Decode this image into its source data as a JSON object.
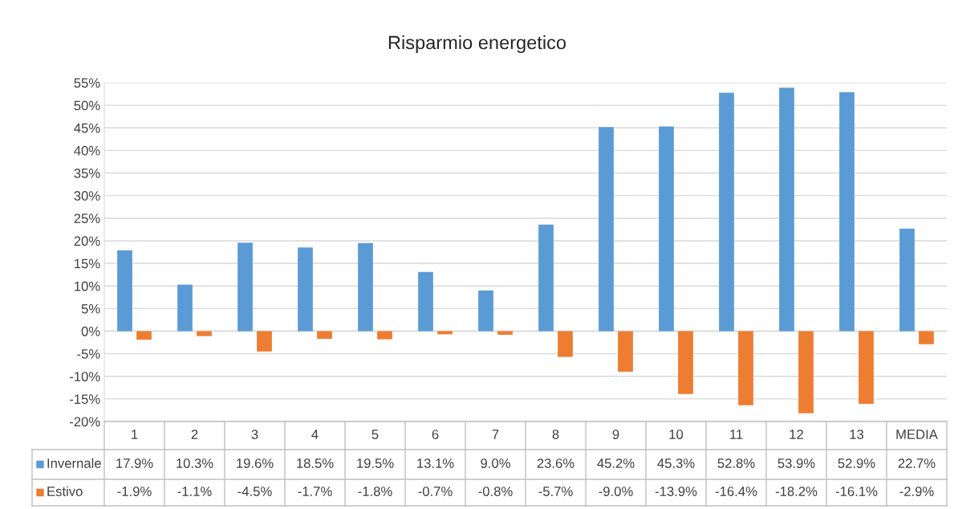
{
  "chart_data": {
    "type": "bar",
    "title": "Risparmio energetico",
    "categories": [
      "1",
      "2",
      "3",
      "4",
      "5",
      "6",
      "7",
      "8",
      "9",
      "10",
      "11",
      "12",
      "13",
      "MEDIA"
    ],
    "series": [
      {
        "name": "Invernale",
        "color": "#5b9bd5",
        "values": [
          17.9,
          10.3,
          19.6,
          18.5,
          19.5,
          13.1,
          9.0,
          23.6,
          45.2,
          45.3,
          52.8,
          53.9,
          52.9,
          22.7
        ],
        "value_labels": [
          "17.9%",
          "10.3%",
          "19.6%",
          "18.5%",
          "19.5%",
          "13.1%",
          "9.0%",
          "23.6%",
          "45.2%",
          "45.3%",
          "52.8%",
          "53.9%",
          "52.9%",
          "22.7%"
        ]
      },
      {
        "name": "Estivo",
        "color": "#ed7d31",
        "values": [
          -1.9,
          -1.1,
          -4.5,
          -1.7,
          -1.8,
          -0.7,
          -0.8,
          -5.7,
          -9.0,
          -13.9,
          -16.4,
          -18.2,
          -16.1,
          -2.9
        ],
        "value_labels": [
          "-1.9%",
          "-1.1%",
          "-4.5%",
          "-1.7%",
          "-1.8%",
          "-0.7%",
          "-0.8%",
          "-5.7%",
          "-9.0%",
          "-13.9%",
          "-16.4%",
          "-18.2%",
          "-16.1%",
          "-2.9%"
        ]
      }
    ],
    "ylim": [
      -20,
      55
    ],
    "yticks": [
      {
        "value": -20,
        "label": "-20%"
      },
      {
        "value": -15,
        "label": "-15%"
      },
      {
        "value": -10,
        "label": "-10%"
      },
      {
        "value": -5,
        "label": "-5%"
      },
      {
        "value": 0,
        "label": "0%"
      },
      {
        "value": 5,
        "label": "5%"
      },
      {
        "value": 10,
        "label": "10%"
      },
      {
        "value": 15,
        "label": "15%"
      },
      {
        "value": 20,
        "label": "20%"
      },
      {
        "value": 25,
        "label": "25%"
      },
      {
        "value": 30,
        "label": "30%"
      },
      {
        "value": 35,
        "label": "35%"
      },
      {
        "value": 40,
        "label": "40%"
      },
      {
        "value": 45,
        "label": "45%"
      },
      {
        "value": 50,
        "label": "50%"
      },
      {
        "value": 55,
        "label": "55%"
      }
    ],
    "grid": "y",
    "legend": "bottom"
  }
}
